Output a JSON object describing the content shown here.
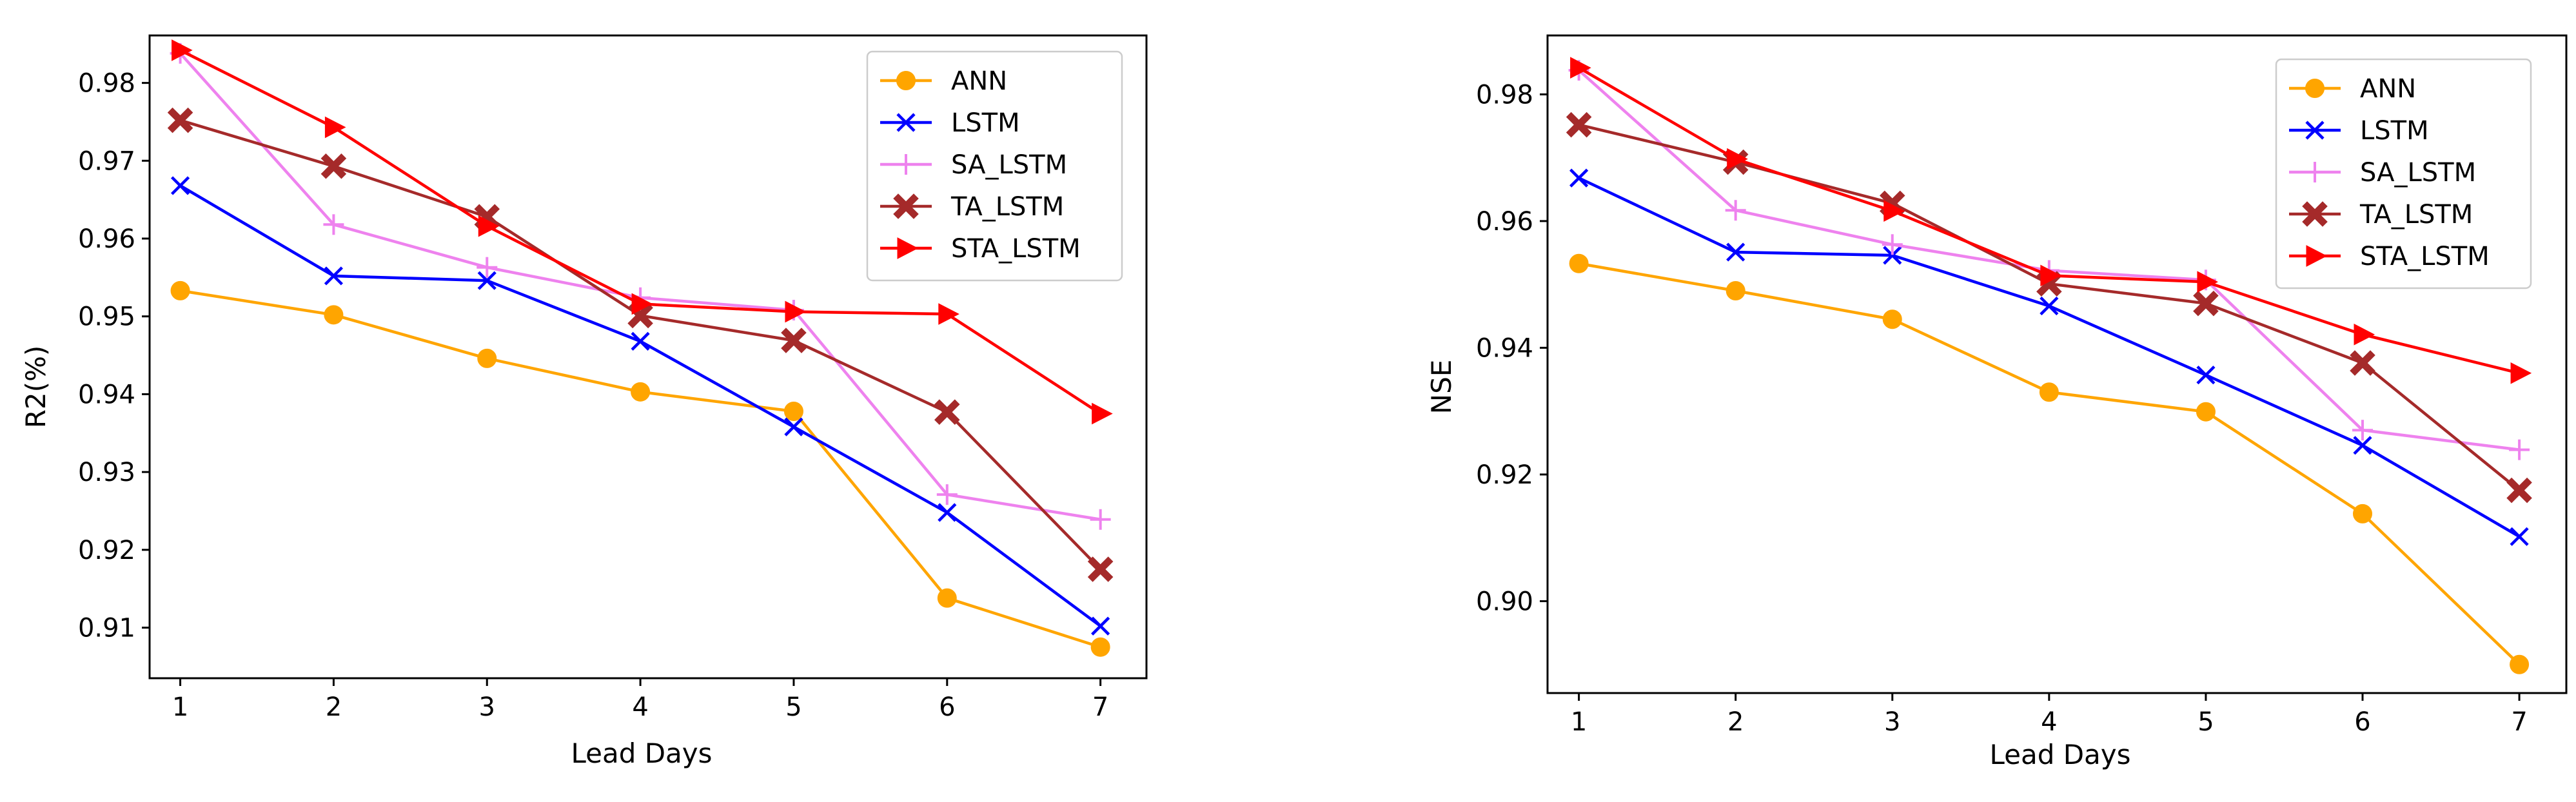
{
  "chart_data": [
    {
      "type": "line",
      "title": "",
      "xlabel": "Lead Days",
      "ylabel": "R2(%)",
      "x": [
        1,
        2,
        3,
        4,
        5,
        6,
        7
      ],
      "xlim": [
        0.8,
        7.3
      ],
      "ylim": [
        0.9035,
        0.9861
      ],
      "yticks": [
        0.91,
        0.92,
        0.93,
        0.94,
        0.95,
        0.96,
        0.97,
        0.98
      ],
      "ytick_labels": [
        "0.91",
        "0.92",
        "0.93",
        "0.94",
        "0.95",
        "0.96",
        "0.97",
        "0.98"
      ],
      "legend_position": "top-right",
      "series": [
        {
          "name": "ANN",
          "color": "#FFA500",
          "marker": "circle",
          "values": [
            0.9533,
            0.9502,
            0.9446,
            0.9403,
            0.9378,
            0.9138,
            0.9075
          ]
        },
        {
          "name": "LSTM",
          "color": "#0000FF",
          "marker": "x",
          "values": [
            0.9668,
            0.9552,
            0.9546,
            0.9468,
            0.9358,
            0.9248,
            0.9102
          ]
        },
        {
          "name": "SA_LSTM",
          "color": "#EE82EE",
          "marker": "plus",
          "values": [
            0.9838,
            0.9618,
            0.9563,
            0.9524,
            0.9508,
            0.9271,
            0.9239
          ]
        },
        {
          "name": "TA_LSTM",
          "color": "#A52A2A",
          "marker": "X",
          "values": [
            0.9752,
            0.9693,
            0.9628,
            0.9501,
            0.9469,
            0.9377,
            0.9175
          ]
        },
        {
          "name": "STA_LSTM",
          "color": "#FF0000",
          "marker": "triangle-right",
          "values": [
            0.9842,
            0.9743,
            0.9616,
            0.9516,
            0.9506,
            0.9503,
            0.9375
          ]
        }
      ]
    },
    {
      "type": "line",
      "title": "",
      "xlabel": "Lead Days",
      "ylabel": "NSE",
      "x": [
        1,
        2,
        3,
        4,
        5,
        6,
        7
      ],
      "xlim": [
        0.8,
        7.3
      ],
      "ylim": [
        0.8855,
        0.9893
      ],
      "yticks": [
        0.9,
        0.92,
        0.94,
        0.96,
        0.98
      ],
      "ytick_labels": [
        "0.90",
        "0.92",
        "0.94",
        "0.96",
        "0.98"
      ],
      "legend_position": "top-right",
      "series": [
        {
          "name": "ANN",
          "color": "#FFA500",
          "marker": "circle",
          "values": [
            0.9533,
            0.949,
            0.9445,
            0.933,
            0.9299,
            0.9138,
            0.89
          ]
        },
        {
          "name": "LSTM",
          "color": "#0000FF",
          "marker": "x",
          "values": [
            0.9668,
            0.9551,
            0.9546,
            0.9466,
            0.9357,
            0.9246,
            0.9102
          ]
        },
        {
          "name": "SA_LSTM",
          "color": "#EE82EE",
          "marker": "plus",
          "values": [
            0.9838,
            0.9617,
            0.9563,
            0.9522,
            0.9507,
            0.927,
            0.9239
          ]
        },
        {
          "name": "TA_LSTM",
          "color": "#A52A2A",
          "marker": "X",
          "values": [
            0.9752,
            0.9693,
            0.9628,
            0.9501,
            0.947,
            0.9376,
            0.9175
          ]
        },
        {
          "name": "STA_LSTM",
          "color": "#FF0000",
          "marker": "triangle-right",
          "values": [
            0.9842,
            0.9698,
            0.9616,
            0.9514,
            0.9504,
            0.9421,
            0.936
          ]
        }
      ]
    }
  ]
}
